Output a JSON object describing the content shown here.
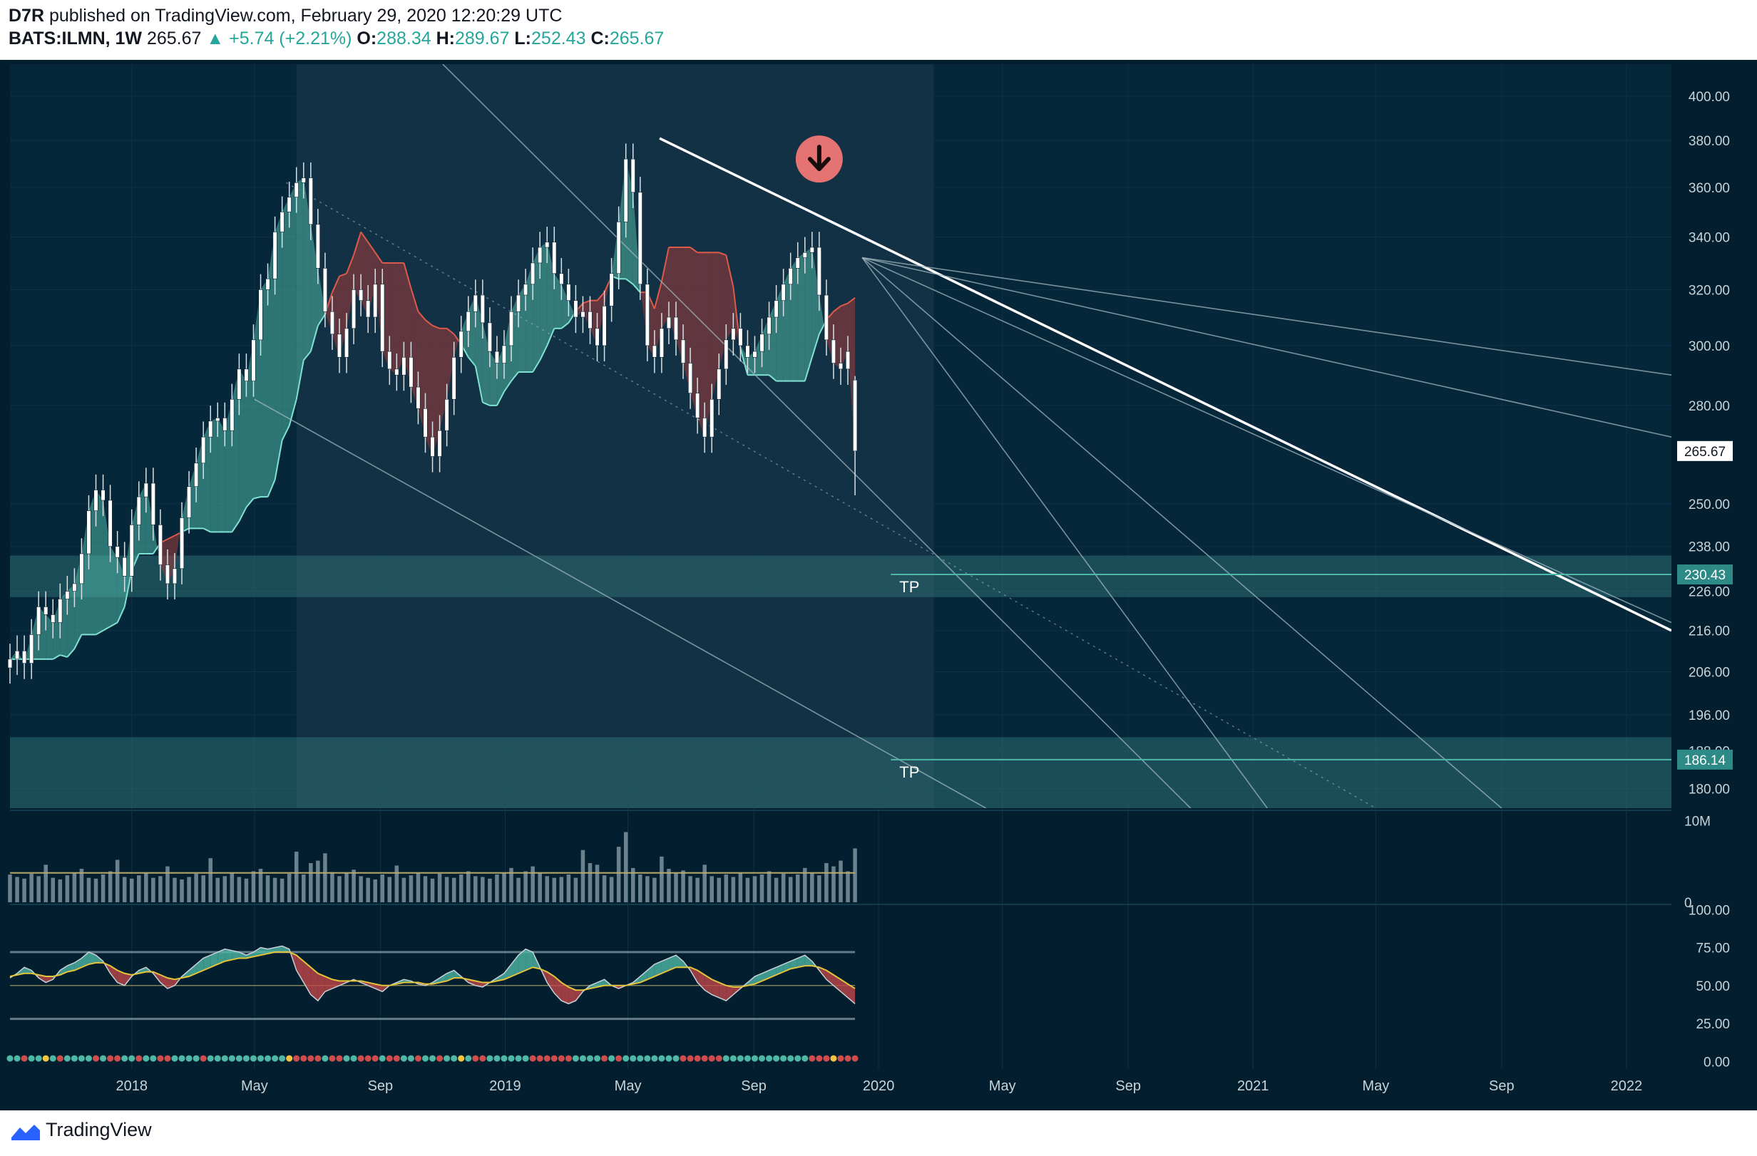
{
  "header": {
    "publisher": "D7R",
    "published_text": "published on TradingView.com, February 29, 2020 12:20:29 UTC",
    "symbol": "BATS:ILMN, 1W",
    "last": "265.67",
    "change": "+5.74 (+2.21%)",
    "o_label": "O:",
    "o": "288.34",
    "h_label": "H:",
    "h": "289.67",
    "l_label": "L:",
    "l": "252.43",
    "c_label": "C:",
    "c": "265.67"
  },
  "footer": {
    "brand": "TradingView"
  },
  "colors": {
    "background": "#031f2f",
    "grid": "#0f3344",
    "up": "#ffffff",
    "down": "#ffffff",
    "cloud_bull": "#4fb7a6",
    "cloud_bear": "#a33b3b",
    "zone": "#2e6e72",
    "trendline": "#ffffff",
    "fan": "#9fb6bd",
    "axis_text": "#c8d3d8",
    "price_label_bg": "#ffffff",
    "tp_label_bg": "#2e8a86",
    "signal": "#e57373"
  },
  "icons": {
    "signal": "arrow-down-circle-icon",
    "brand": "tradingview-logo-icon"
  },
  "chart_data": [
    {
      "type": "candlestick",
      "title": "BATS:ILMN, 1W",
      "x_tick_labels": [
        "2018",
        "May",
        "Sep",
        "2019",
        "May",
        "Sep",
        "2020",
        "May",
        "Sep",
        "2021",
        "May",
        "Sep",
        "2022"
      ],
      "x_ticks": [
        "2018-01-01",
        "2018-05-01",
        "2018-09-01",
        "2019-01-01",
        "2019-05-01",
        "2019-09-01",
        "2020-01-01",
        "2020-05-01",
        "2020-09-01",
        "2021-01-01",
        "2021-05-01",
        "2021-09-01",
        "2022-01-01"
      ],
      "x_range": [
        "2017-09-04",
        "2022-02-14"
      ],
      "y_scale": "log",
      "y_tick_labels": [
        "400.00",
        "380.00",
        "360.00",
        "340.00",
        "320.00",
        "300.00",
        "280.00",
        "250.00",
        "238.00",
        "226.00",
        "216.00",
        "206.00",
        "196.00",
        "188.00",
        "180.00"
      ],
      "y_ticks": [
        400,
        380,
        360,
        340,
        320,
        300,
        280,
        250,
        238,
        226,
        216,
        206,
        196,
        188,
        180
      ],
      "y_range": [
        176,
        415
      ],
      "last_price_label": "265.67",
      "last_price": 265.67,
      "price_lines": [
        {
          "label": "230.43",
          "value": 230.43,
          "annotation": "TP"
        },
        {
          "label": "186.14",
          "value": 186.14,
          "annotation": "TP"
        }
      ],
      "zones": [
        {
          "from": 224.5,
          "to": 235.5
        },
        {
          "from": 176,
          "to": 191
        }
      ],
      "trendlines": [
        {
          "from": [
            "2019-06-01",
            381
          ],
          "to": [
            "2022-02-14",
            216
          ]
        }
      ],
      "fan_lines": [
        {
          "from": [
            "2019-12-16",
            332
          ],
          "to": [
            "2022-02-14",
            290
          ]
        },
        {
          "from": [
            "2019-12-16",
            332
          ],
          "to": [
            "2022-02-14",
            270
          ]
        },
        {
          "from": [
            "2019-12-16",
            332
          ],
          "to": [
            "2022-02-14",
            218
          ]
        },
        {
          "from": [
            "2019-12-16",
            332
          ],
          "to": [
            "2021-09-01",
            176
          ]
        },
        {
          "from": [
            "2019-12-16",
            332
          ],
          "to": [
            "2021-01-15",
            176
          ]
        },
        {
          "from": [
            "2018-11-01",
            415
          ],
          "to": [
            "2020-11-01",
            176
          ]
        },
        {
          "from": [
            "2018-05-01",
            282
          ],
          "to": [
            "2020-04-15",
            176
          ]
        }
      ],
      "dotted_lines": [
        {
          "from": [
            "2018-06-01",
            362
          ],
          "to": [
            "2021-05-01",
            176
          ]
        }
      ],
      "signal_marker": {
        "date": "2019-11-04",
        "price": 372,
        "icon": "arrow-down-circle-icon"
      },
      "weekly_closes": [
        [
          209,
          211,
          208,
          215,
          222,
          220,
          218,
          224,
          226,
          228,
          236,
          248,
          254,
          251,
          238,
          235,
          230,
          244,
          252,
          256,
          244,
          233,
          228,
          232,
          246,
          255,
          262,
          270,
          275,
          276,
          272,
          282,
          292,
          288,
          302,
          320,
          324,
          342,
          350,
          356,
          362,
          364,
          345,
          328,
          312,
          304,
          296,
          306,
          320,
          316,
          310,
          322,
          298,
          292,
          290,
          296,
          286,
          279,
          270,
          264,
          272,
          282,
          296,
          305,
          312,
          318,
          308,
          298,
          294,
          300,
          312,
          318,
          322,
          330,
          336,
          338,
          326,
          322,
          316,
          310,
          312,
          306,
          300,
          314,
          326,
          346,
          372,
          358,
          322,
          300,
          296,
          306,
          310,
          302,
          294,
          284,
          276,
          270,
          282,
          292,
          302,
          306,
          300,
          296,
          298,
          304,
          310,
          316,
          322,
          328,
          332,
          334,
          336,
          318,
          302,
          294,
          292,
          298,
          265.67
        ]
      ],
      "last_candle": {
        "date": "2020-02-24",
        "open": 288.34,
        "high": 289.67,
        "low": 252.43,
        "close": 265.67
      }
    },
    {
      "type": "bar",
      "title": "Volume",
      "y_tick_labels": [
        "10M",
        "0"
      ],
      "y_ticks": [
        10000000,
        0
      ],
      "y_range": [
        0,
        11000000
      ],
      "series": [
        {
          "name": "",
          "values": [
            3.4,
            3.1,
            2.9,
            3.5,
            3.2,
            4.6,
            3.0,
            2.8,
            3.3,
            3.6,
            4.1,
            3.0,
            2.9,
            3.4,
            3.8,
            5.2,
            3.1,
            2.9,
            3.3,
            3.6,
            3.0,
            3.2,
            4.4,
            3.0,
            2.8,
            3.1,
            3.5,
            3.3,
            5.4,
            3.0,
            3.2,
            3.6,
            3.1,
            2.9,
            3.8,
            4.1,
            3.3,
            3.0,
            2.9,
            3.5,
            6.2,
            3.4,
            4.8,
            5.1,
            6.0,
            3.7,
            3.2,
            3.6,
            4.0,
            3.2,
            3.0,
            2.8,
            3.4,
            3.1,
            4.5,
            3.0,
            3.3,
            3.6,
            3.2,
            2.9,
            3.5,
            3.1,
            3.0,
            3.4,
            3.8,
            3.2,
            3.1,
            2.9,
            3.4,
            3.6,
            4.2,
            3.0,
            3.8,
            4.4,
            3.6,
            3.2,
            3.0,
            3.1,
            3.4,
            3.0,
            6.4,
            4.8,
            4.6,
            3.3,
            3.1,
            6.8,
            8.6,
            4.2,
            3.4,
            3.2,
            3.0,
            5.6,
            4.1,
            3.6,
            3.9,
            3.2,
            3.0,
            4.6,
            3.2,
            3.0,
            3.4,
            3.1,
            3.6,
            3.0,
            3.2,
            3.4,
            3.8,
            3.0,
            3.5,
            3.1,
            3.4,
            4.2,
            3.6,
            3.3,
            4.8,
            4.4,
            5.1,
            3.8,
            6.6
          ]
        }
      ],
      "overlay_line": {
        "name": "",
        "value": 3.6
      }
    },
    {
      "type": "line",
      "title": "",
      "y_tick_labels": [
        "100.00",
        "75.00",
        "50.00",
        "25.00",
        "0.00"
      ],
      "y_ticks": [
        100,
        75,
        50,
        25,
        0
      ],
      "y_range": [
        -5,
        102
      ],
      "levels": [
        72,
        28
      ],
      "series": [
        {
          "name": "",
          "values": [
            55,
            58,
            62,
            60,
            55,
            52,
            54,
            60,
            63,
            65,
            68,
            72,
            70,
            66,
            58,
            52,
            50,
            56,
            60,
            62,
            58,
            52,
            48,
            50,
            56,
            60,
            64,
            68,
            70,
            72,
            74,
            73,
            72,
            70,
            72,
            75,
            74,
            75,
            76,
            74,
            60,
            52,
            44,
            40,
            46,
            48,
            50,
            52,
            54,
            52,
            50,
            48,
            46,
            50,
            52,
            54,
            53,
            51,
            50,
            52,
            55,
            58,
            60,
            56,
            52,
            50,
            49,
            52,
            55,
            58,
            64,
            70,
            74,
            72,
            62,
            52,
            45,
            40,
            38,
            40,
            46,
            50,
            52,
            54,
            50,
            48,
            50,
            52,
            56,
            60,
            64,
            66,
            68,
            70,
            66,
            60,
            52,
            47,
            44,
            42,
            40,
            44,
            48,
            52,
            56,
            58,
            60,
            62,
            64,
            66,
            68,
            70,
            66,
            60,
            54,
            50,
            46,
            42,
            38
          ]
        },
        {
          "name": "",
          "values": [
            56,
            57,
            58,
            58,
            57,
            56,
            56,
            57,
            59,
            60,
            62,
            64,
            65,
            65,
            63,
            60,
            58,
            57,
            58,
            59,
            59,
            57,
            55,
            54,
            55,
            56,
            58,
            60,
            62,
            64,
            66,
            67,
            68,
            68,
            69,
            70,
            71,
            72,
            72,
            72,
            70,
            66,
            62,
            58,
            56,
            54,
            53,
            53,
            53,
            53,
            52,
            51,
            50,
            50,
            51,
            52,
            52,
            52,
            51,
            51,
            52,
            53,
            55,
            55,
            54,
            53,
            52,
            52,
            53,
            54,
            56,
            58,
            60,
            62,
            61,
            59,
            56,
            52,
            49,
            47,
            47,
            48,
            49,
            50,
            50,
            50,
            50,
            51,
            52,
            54,
            56,
            58,
            60,
            62,
            62,
            62,
            60,
            57,
            54,
            52,
            50,
            49,
            49,
            50,
            51,
            53,
            55,
            57,
            59,
            61,
            62,
            63,
            63,
            62,
            60,
            57,
            54,
            51,
            48
          ]
        }
      ],
      "cell_colors_legend": [
        "#26a69a",
        "#e57373",
        "#f5c242"
      ],
      "dot_states": [
        "g",
        "g",
        "r",
        "g",
        "g",
        "y",
        "g",
        "r",
        "g",
        "g",
        "g",
        "g",
        "r",
        "g",
        "r",
        "r",
        "g",
        "g",
        "r",
        "g",
        "g",
        "r",
        "r",
        "g",
        "g",
        "g",
        "g",
        "r",
        "g",
        "g",
        "g",
        "g",
        "g",
        "g",
        "g",
        "g",
        "g",
        "g",
        "g",
        "y",
        "r",
        "r",
        "r",
        "r",
        "g",
        "r",
        "r",
        "g",
        "g",
        "r",
        "r",
        "r",
        "g",
        "r",
        "r",
        "g",
        "g",
        "r",
        "g",
        "g",
        "r",
        "g",
        "g",
        "y",
        "g",
        "r",
        "r",
        "g",
        "g",
        "g",
        "g",
        "g",
        "g",
        "r",
        "r",
        "r",
        "r",
        "r",
        "r",
        "g",
        "g",
        "g",
        "g",
        "r",
        "g",
        "r",
        "g",
        "g",
        "g",
        "g",
        "g",
        "g",
        "g",
        "g",
        "r",
        "r",
        "r",
        "r",
        "r",
        "r",
        "g",
        "g",
        "g",
        "g",
        "g",
        "g",
        "g",
        "g",
        "g",
        "g",
        "g",
        "g",
        "r",
        "r",
        "r",
        "y",
        "r",
        "r",
        "r"
      ]
    }
  ]
}
